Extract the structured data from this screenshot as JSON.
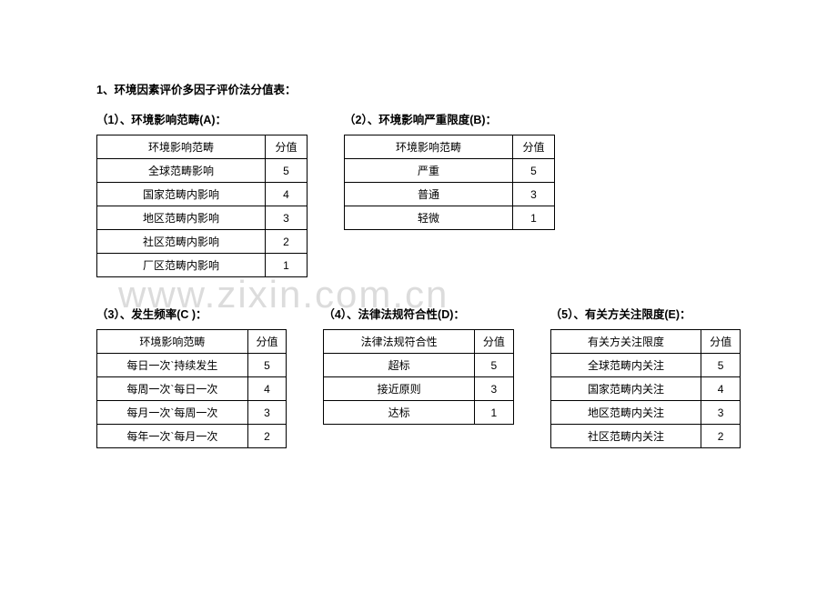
{
  "mainTitle": "1、环境因素评价多因子评价法分值表：",
  "watermark": "www.zixin.com.cn",
  "tables": {
    "A": {
      "title": "（1）、环境影响范畴(A)：",
      "header": [
        "环境影响范畴",
        "分值"
      ],
      "rows": [
        [
          "全球范畴影响",
          "5"
        ],
        [
          "国家范畴内影响",
          "4"
        ],
        [
          "地区范畴内影响",
          "3"
        ],
        [
          "社区范畴内影响",
          "2"
        ],
        [
          "厂区范畴内影响",
          "1"
        ]
      ]
    },
    "B": {
      "title": "（2）、环境影响严重限度(B)：",
      "header": [
        "环境影响范畴",
        "分值"
      ],
      "rows": [
        [
          "严重",
          "5"
        ],
        [
          "普通",
          "3"
        ],
        [
          "轻微",
          "1"
        ]
      ]
    },
    "C": {
      "title": "（3）、发生频率(C )：",
      "header": [
        "环境影响范畴",
        "分值"
      ],
      "rows": [
        [
          "每日一次`持续发生",
          "5"
        ],
        [
          "每周一次`每日一次",
          "4"
        ],
        [
          "每月一次`每周一次",
          "3"
        ],
        [
          "每年一次`每月一次",
          "2"
        ]
      ]
    },
    "D": {
      "title": "（4）、法律法规符合性(D)：",
      "header": [
        "法律法规符合性",
        "分值"
      ],
      "rows": [
        [
          "超标",
          "5"
        ],
        [
          "接近原则",
          "3"
        ],
        [
          "达标",
          "1"
        ]
      ]
    },
    "E": {
      "title": "（5）、有关方关注限度(E)：",
      "header": [
        "有关方关注限度",
        "分值"
      ],
      "rows": [
        [
          "全球范畴内关注",
          "5"
        ],
        [
          "国家范畴内关注",
          "4"
        ],
        [
          "地区范畴内关注",
          "3"
        ],
        [
          "社区范畴内关注",
          "2"
        ]
      ]
    }
  }
}
